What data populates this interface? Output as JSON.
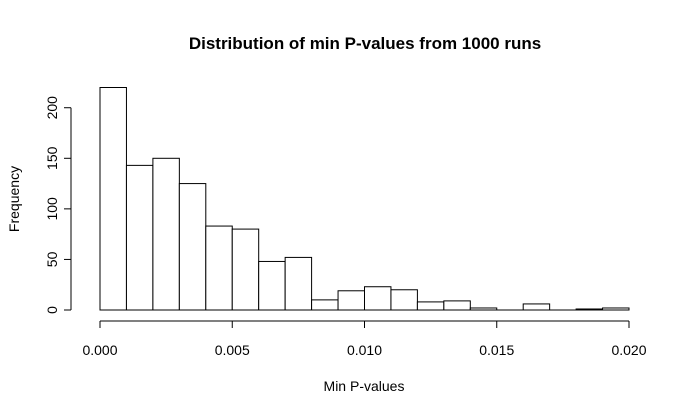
{
  "chart_data": {
    "type": "bar",
    "title": "Distribution of min P-values from 1000 runs",
    "xlabel": "Min P-values",
    "ylabel": "Frequency",
    "bin_edges": [
      0.0,
      0.001,
      0.002,
      0.003,
      0.004,
      0.005,
      0.006,
      0.007,
      0.008,
      0.009,
      0.01,
      0.011,
      0.012,
      0.013,
      0.014,
      0.015,
      0.016,
      0.017,
      0.018,
      0.019,
      0.02
    ],
    "values": [
      220,
      143,
      150,
      125,
      83,
      80,
      48,
      52,
      10,
      19,
      23,
      20,
      8,
      9,
      2,
      0,
      6,
      0,
      1,
      2
    ],
    "xlim": [
      0,
      0.02
    ],
    "ylim": [
      0,
      220
    ],
    "x_ticks": [
      "0.000",
      "0.005",
      "0.010",
      "0.015",
      "0.020"
    ],
    "y_ticks": [
      "0",
      "50",
      "100",
      "150",
      "200"
    ],
    "grid": false,
    "bar_fill": "#ffffff",
    "bar_stroke": "#000000"
  }
}
